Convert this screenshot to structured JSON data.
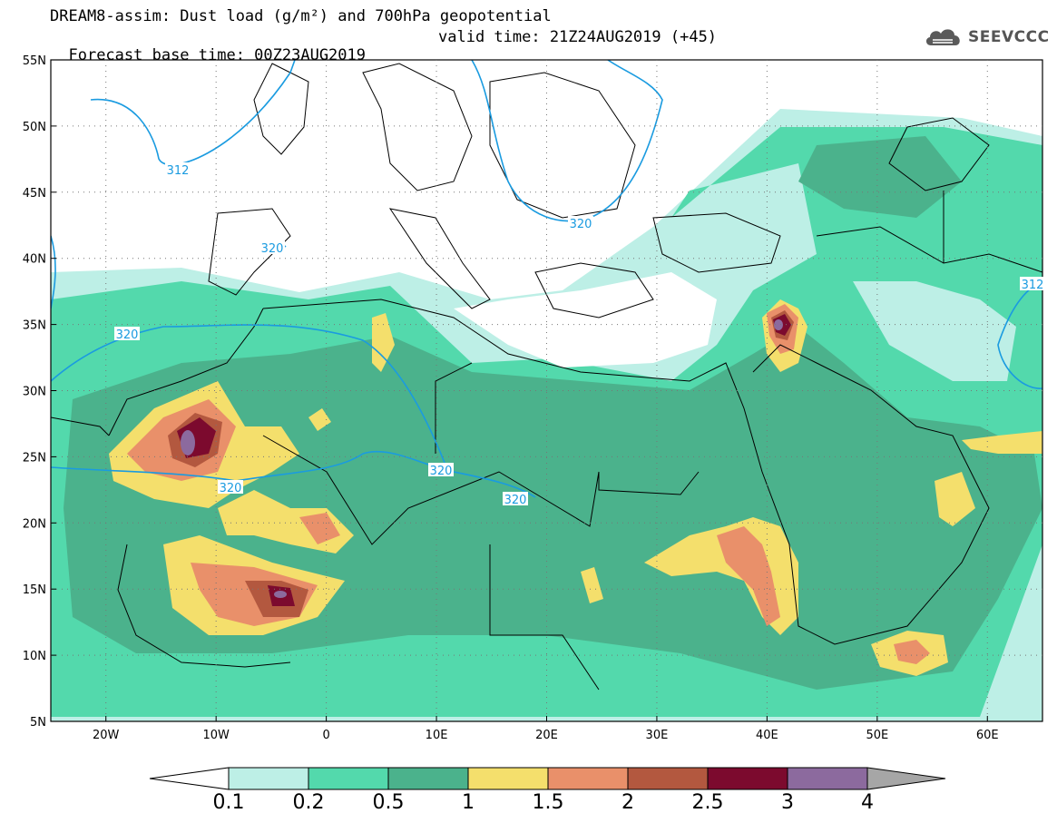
{
  "header": {
    "line1": "DREAM8-assim: Dust load (g/m²) and 700hPa geopotential",
    "base_time": "Forecast base time: 00Z23AUG2019",
    "valid_time": "valid time: 21Z24AUG2019 (+45)"
  },
  "logo": {
    "text": "SEEVCCC",
    "icon": "cloud-icon"
  },
  "axes": {
    "lat_labels": [
      "55N",
      "50N",
      "45N",
      "40N",
      "35N",
      "30N",
      "25N",
      "20N",
      "15N",
      "10N",
      "5N"
    ],
    "lat_values": [
      55,
      50,
      45,
      40,
      35,
      30,
      25,
      20,
      15,
      10,
      5
    ],
    "lon_labels": [
      "20W",
      "10W",
      "0",
      "10E",
      "20E",
      "30E",
      "40E",
      "50E",
      "60E"
    ],
    "lon_values": [
      -20,
      -10,
      0,
      10,
      20,
      30,
      40,
      50,
      60
    ],
    "lon_range": [
      -25,
      65
    ],
    "lat_range": [
      5,
      55
    ],
    "grid": "dotted"
  },
  "colorbar": {
    "labels": [
      "0.1",
      "0.2",
      "0.5",
      "1",
      "1.5",
      "2",
      "2.5",
      "3",
      "4"
    ],
    "colors": [
      "#bdefe6",
      "#53d9ac",
      "#4bb28c",
      "#f4df6c",
      "#e9906a",
      "#b3583f",
      "#7c0a2e",
      "#8c6a9e"
    ],
    "under_color": "#ffffff",
    "over_color": "#a6a6a6"
  },
  "contours": [
    {
      "label": "312",
      "color": "#1a9be0"
    },
    {
      "label": "320",
      "color": "#1a9be0"
    },
    {
      "label": "320",
      "color": "#1a9be0"
    },
    {
      "label": "320",
      "color": "#1a9be0"
    },
    {
      "label": "320",
      "color": "#1a9be0"
    },
    {
      "label": "320",
      "color": "#1a9be0"
    },
    {
      "label": "320",
      "color": "#1a9be0"
    },
    {
      "label": "312",
      "color": "#1a9be0"
    }
  ]
}
